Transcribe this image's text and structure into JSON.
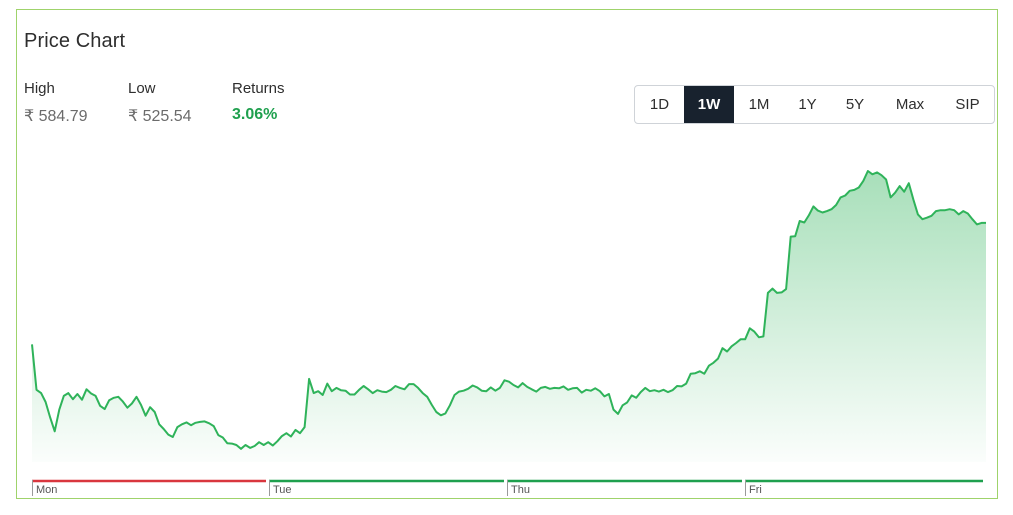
{
  "header": {
    "title": "Price Chart"
  },
  "stats": {
    "high_label": "High",
    "high_value": "₹ 584.79",
    "low_label": "Low",
    "low_value": "₹ 525.54",
    "returns_label": "Returns",
    "returns_value": "3.06%"
  },
  "range_buttons": [
    "1D",
    "1W",
    "1M",
    "1Y",
    "5Y",
    "Max",
    "SIP"
  ],
  "active_range": "1W",
  "colors": {
    "line": "#2fb35a",
    "positive": "#1fa04e",
    "negative": "#d9363e",
    "active_bg": "#18222e"
  },
  "chart_data": {
    "type": "area",
    "x_unit": "trading session progress through the week",
    "ylim": [
      525.54,
      584.79
    ],
    "days": [
      {
        "label": "Mon",
        "direction": "down"
      },
      {
        "label": "Tue",
        "direction": "up"
      },
      {
        "label": "Thu",
        "direction": "up"
      },
      {
        "label": "Fri",
        "direction": "up"
      }
    ],
    "series": [
      {
        "values": [
          548.1,
          538.5,
          537.8,
          535.9,
          532.6,
          529.7,
          534.3,
          537.2,
          537.8,
          536.5,
          537.6,
          536.4,
          538.6,
          537.7,
          537.2,
          535.1,
          534.4,
          536.3,
          536.8,
          537.0,
          536.0,
          534.7,
          535.6,
          537.0,
          535.3,
          533.0,
          534.8,
          533.8,
          531.2,
          530.2,
          529.0,
          528.5,
          530.6,
          531.2,
          531.6,
          531.0,
          531.5,
          531.7,
          531.8,
          531.4,
          530.8,
          528.9,
          528.4,
          527.2,
          527.1,
          526.8,
          526.0,
          526.8,
          526.2,
          526.6,
          527.4,
          526.8,
          527.4,
          526.7,
          527.6,
          528.7,
          529.3,
          528.6,
          530.0,
          529.3,
          530.6,
          540.8,
          537.8,
          538.2,
          537.4,
          539.8,
          538.2,
          538.9,
          538.4,
          538.3,
          537.5,
          537.5,
          538.5,
          539.3,
          538.6,
          537.8,
          538.4,
          538.1,
          538.0,
          538.5,
          539.3,
          538.9,
          538.6,
          539.7,
          539.7,
          538.9,
          537.8,
          537.0,
          535.3,
          533.8,
          533.1,
          533.5,
          535.2,
          537.4,
          538.1,
          538.3,
          538.7,
          539.4,
          539.0,
          538.3,
          538.2,
          539.0,
          538.3,
          538.9,
          540.5,
          540.2,
          539.5,
          539.0,
          539.9,
          539.1,
          538.6,
          538.1,
          538.9,
          539.1,
          538.7,
          538.9,
          538.8,
          539.2,
          538.5,
          538.8,
          538.9,
          537.9,
          538.5,
          538.3,
          538.8,
          538.2,
          537.1,
          537.6,
          534.3,
          533.4,
          535.2,
          535.8,
          537.3,
          536.8,
          538.0,
          538.9,
          538.2,
          538.4,
          538.1,
          538.5,
          538.0,
          538.4,
          539.3,
          539.2,
          539.8,
          541.9,
          542.0,
          542.4,
          541.9,
          543.6,
          544.2,
          545.1,
          547.3,
          546.6,
          547.7,
          548.4,
          549.2,
          549.2,
          551.5,
          550.8,
          549.6,
          549.8,
          559.0,
          559.9,
          559.0,
          559.1,
          559.8,
          570.9,
          571.0,
          574.2,
          573.9,
          575.4,
          577.3,
          576.4,
          576.0,
          576.3,
          576.7,
          577.6,
          579.2,
          579.6,
          580.6,
          580.8,
          581.3,
          582.7,
          584.8,
          584.1,
          584.5,
          583.9,
          583.0,
          579.2,
          580.2,
          581.6,
          580.4,
          582.2,
          578.8,
          575.6,
          574.6,
          574.9,
          575.3,
          576.3,
          576.5,
          576.5,
          576.7,
          576.5,
          575.6,
          576.3,
          575.8,
          574.6,
          573.5,
          573.8,
          573.8
        ],
        "color": "#2fb35a"
      }
    ],
    "grid": false,
    "legend": "none"
  }
}
